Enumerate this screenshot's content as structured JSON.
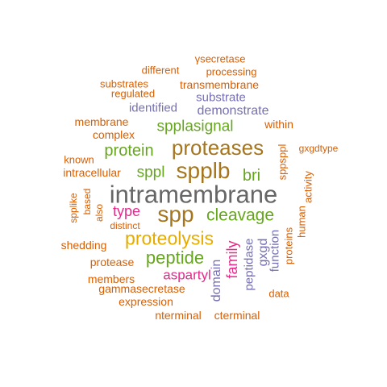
{
  "colors": {
    "orange": "#d95f02",
    "purple": "#7570b3",
    "gray": "#666666",
    "green": "#66a61e",
    "gold": "#e6ab02",
    "brown": "#a6761d",
    "magenta": "#e7298a"
  },
  "words": [
    {
      "text": "intramembrane",
      "color": "gray"
    },
    {
      "text": "spp",
      "color": "brown"
    },
    {
      "text": "spplb",
      "color": "brown"
    },
    {
      "text": "proteases",
      "color": "brown"
    },
    {
      "text": "proteolysis",
      "color": "gold"
    },
    {
      "text": "cleavage",
      "color": "green"
    },
    {
      "text": "peptide",
      "color": "green"
    },
    {
      "text": "protein",
      "color": "green"
    },
    {
      "text": "sppl",
      "color": "green"
    },
    {
      "text": "bri",
      "color": "green"
    },
    {
      "text": "spplasignal",
      "color": "green"
    },
    {
      "text": "type",
      "color": "magenta"
    },
    {
      "text": "aspartyl",
      "color": "magenta"
    },
    {
      "text": "family",
      "color": "magenta"
    },
    {
      "text": "domain",
      "color": "purple"
    },
    {
      "text": "peptidase",
      "color": "purple"
    },
    {
      "text": "gxgd",
      "color": "purple"
    },
    {
      "text": "function",
      "color": "purple"
    },
    {
      "text": "identified",
      "color": "purple"
    },
    {
      "text": "demonstrate",
      "color": "purple"
    },
    {
      "text": "substrate",
      "color": "purple"
    },
    {
      "text": "γsecretase",
      "color": "orange"
    },
    {
      "text": "different",
      "color": "orange"
    },
    {
      "text": "processing",
      "color": "orange"
    },
    {
      "text": "substrates",
      "color": "orange"
    },
    {
      "text": "transmembrane",
      "color": "orange"
    },
    {
      "text": "regulated",
      "color": "orange"
    },
    {
      "text": "membrane",
      "color": "orange"
    },
    {
      "text": "within",
      "color": "orange"
    },
    {
      "text": "complex",
      "color": "orange"
    },
    {
      "text": "gxgdtype",
      "color": "orange"
    },
    {
      "text": "known",
      "color": "orange"
    },
    {
      "text": "intracellular",
      "color": "orange"
    },
    {
      "text": "sppsppl",
      "color": "orange"
    },
    {
      "text": "activity",
      "color": "orange"
    },
    {
      "text": "human",
      "color": "orange"
    },
    {
      "text": "proteins",
      "color": "orange"
    },
    {
      "text": "based",
      "color": "orange"
    },
    {
      "text": "spplike",
      "color": "orange"
    },
    {
      "text": "also",
      "color": "orange"
    },
    {
      "text": "distinct",
      "color": "orange"
    },
    {
      "text": "shedding",
      "color": "orange"
    },
    {
      "text": "protease",
      "color": "orange"
    },
    {
      "text": "members",
      "color": "orange"
    },
    {
      "text": "gammasecretase",
      "color": "orange"
    },
    {
      "text": "expression",
      "color": "orange"
    },
    {
      "text": "data",
      "color": "orange"
    },
    {
      "text": "nterminal",
      "color": "orange"
    },
    {
      "text": "cterminal",
      "color": "orange"
    }
  ]
}
